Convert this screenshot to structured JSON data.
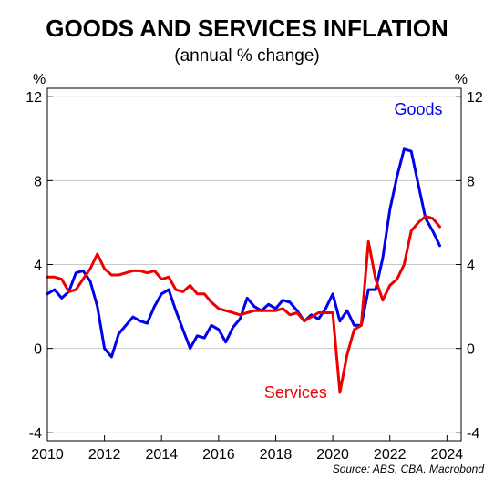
{
  "chart_data": {
    "type": "line",
    "title": "GOODS AND SERVICES INFLATION",
    "subtitle": "(annual % change)",
    "y_unit_left": "%",
    "y_unit_right": "%",
    "xlim": [
      2010,
      2024.5
    ],
    "ylim": [
      -4.4,
      12.4
    ],
    "x_ticks": [
      2010,
      2012,
      2014,
      2016,
      2018,
      2020,
      2022,
      2024
    ],
    "x_tick_labels": [
      "2010",
      "2012",
      "2014",
      "2016",
      "2018",
      "2020",
      "2022",
      "2024"
    ],
    "y_ticks": [
      -4,
      0,
      4,
      8,
      12
    ],
    "y_tick_labels": [
      "-4",
      "0",
      "4",
      "8",
      "12"
    ],
    "grid": "horizontal",
    "source": "Source: ABS, CBA, Macrobond",
    "series": [
      {
        "name": "Goods",
        "color": "#0000ee",
        "x": [
          2010.0,
          2010.25,
          2010.5,
          2010.75,
          2011.0,
          2011.25,
          2011.5,
          2011.75,
          2012.0,
          2012.25,
          2012.5,
          2012.75,
          2013.0,
          2013.25,
          2013.5,
          2013.75,
          2014.0,
          2014.25,
          2014.5,
          2014.75,
          2015.0,
          2015.25,
          2015.5,
          2015.75,
          2016.0,
          2016.25,
          2016.5,
          2016.75,
          2017.0,
          2017.25,
          2017.5,
          2017.75,
          2018.0,
          2018.25,
          2018.5,
          2018.75,
          2019.0,
          2019.25,
          2019.5,
          2019.75,
          2020.0,
          2020.25,
          2020.5,
          2020.75,
          2021.0,
          2021.25,
          2021.5,
          2021.75,
          2022.0,
          2022.25,
          2022.5,
          2022.75,
          2023.0,
          2023.25,
          2023.5,
          2023.75
        ],
        "values": [
          2.6,
          2.8,
          2.4,
          2.7,
          3.6,
          3.7,
          3.2,
          2.0,
          0.0,
          -0.4,
          0.7,
          1.1,
          1.5,
          1.3,
          1.2,
          2.0,
          2.6,
          2.8,
          1.8,
          0.9,
          0.0,
          0.6,
          0.5,
          1.1,
          0.9,
          0.3,
          1.0,
          1.4,
          2.4,
          2.0,
          1.8,
          2.1,
          1.9,
          2.3,
          2.2,
          1.8,
          1.3,
          1.6,
          1.4,
          1.9,
          2.6,
          1.3,
          1.8,
          1.1,
          1.1,
          2.8,
          2.8,
          4.3,
          6.6,
          8.2,
          9.5,
          9.4,
          7.8,
          6.2,
          5.6,
          4.9
        ]
      },
      {
        "name": "Services",
        "color": "#ee0000",
        "x": [
          2010.0,
          2010.25,
          2010.5,
          2010.75,
          2011.0,
          2011.25,
          2011.5,
          2011.75,
          2012.0,
          2012.25,
          2012.5,
          2012.75,
          2013.0,
          2013.25,
          2013.5,
          2013.75,
          2014.0,
          2014.25,
          2014.5,
          2014.75,
          2015.0,
          2015.25,
          2015.5,
          2015.75,
          2016.0,
          2016.25,
          2016.5,
          2016.75,
          2017.0,
          2017.25,
          2017.5,
          2017.75,
          2018.0,
          2018.25,
          2018.5,
          2018.75,
          2019.0,
          2019.25,
          2019.5,
          2019.75,
          2020.0,
          2020.25,
          2020.5,
          2020.75,
          2021.0,
          2021.25,
          2021.5,
          2021.75,
          2022.0,
          2022.25,
          2022.5,
          2022.75,
          2023.0,
          2023.25,
          2023.5,
          2023.75
        ],
        "values": [
          3.4,
          3.4,
          3.3,
          2.7,
          2.8,
          3.3,
          3.8,
          4.5,
          3.8,
          3.5,
          3.5,
          3.6,
          3.7,
          3.7,
          3.6,
          3.7,
          3.3,
          3.4,
          2.8,
          2.7,
          3.0,
          2.6,
          2.6,
          2.2,
          1.9,
          1.8,
          1.7,
          1.6,
          1.7,
          1.8,
          1.8,
          1.8,
          1.8,
          1.9,
          1.6,
          1.7,
          1.3,
          1.5,
          1.7,
          1.7,
          1.7,
          -2.1,
          -0.3,
          0.9,
          1.1,
          5.1,
          3.3,
          2.3,
          3.0,
          3.3,
          4.0,
          5.6,
          6.0,
          6.3,
          6.2,
          5.8
        ]
      }
    ],
    "labels": [
      {
        "text": "Goods",
        "series": 0,
        "x": 2023.0,
        "y": 11.4
      },
      {
        "text": "Services",
        "series": 1,
        "x": 2018.7,
        "y": -2.1
      }
    ]
  }
}
